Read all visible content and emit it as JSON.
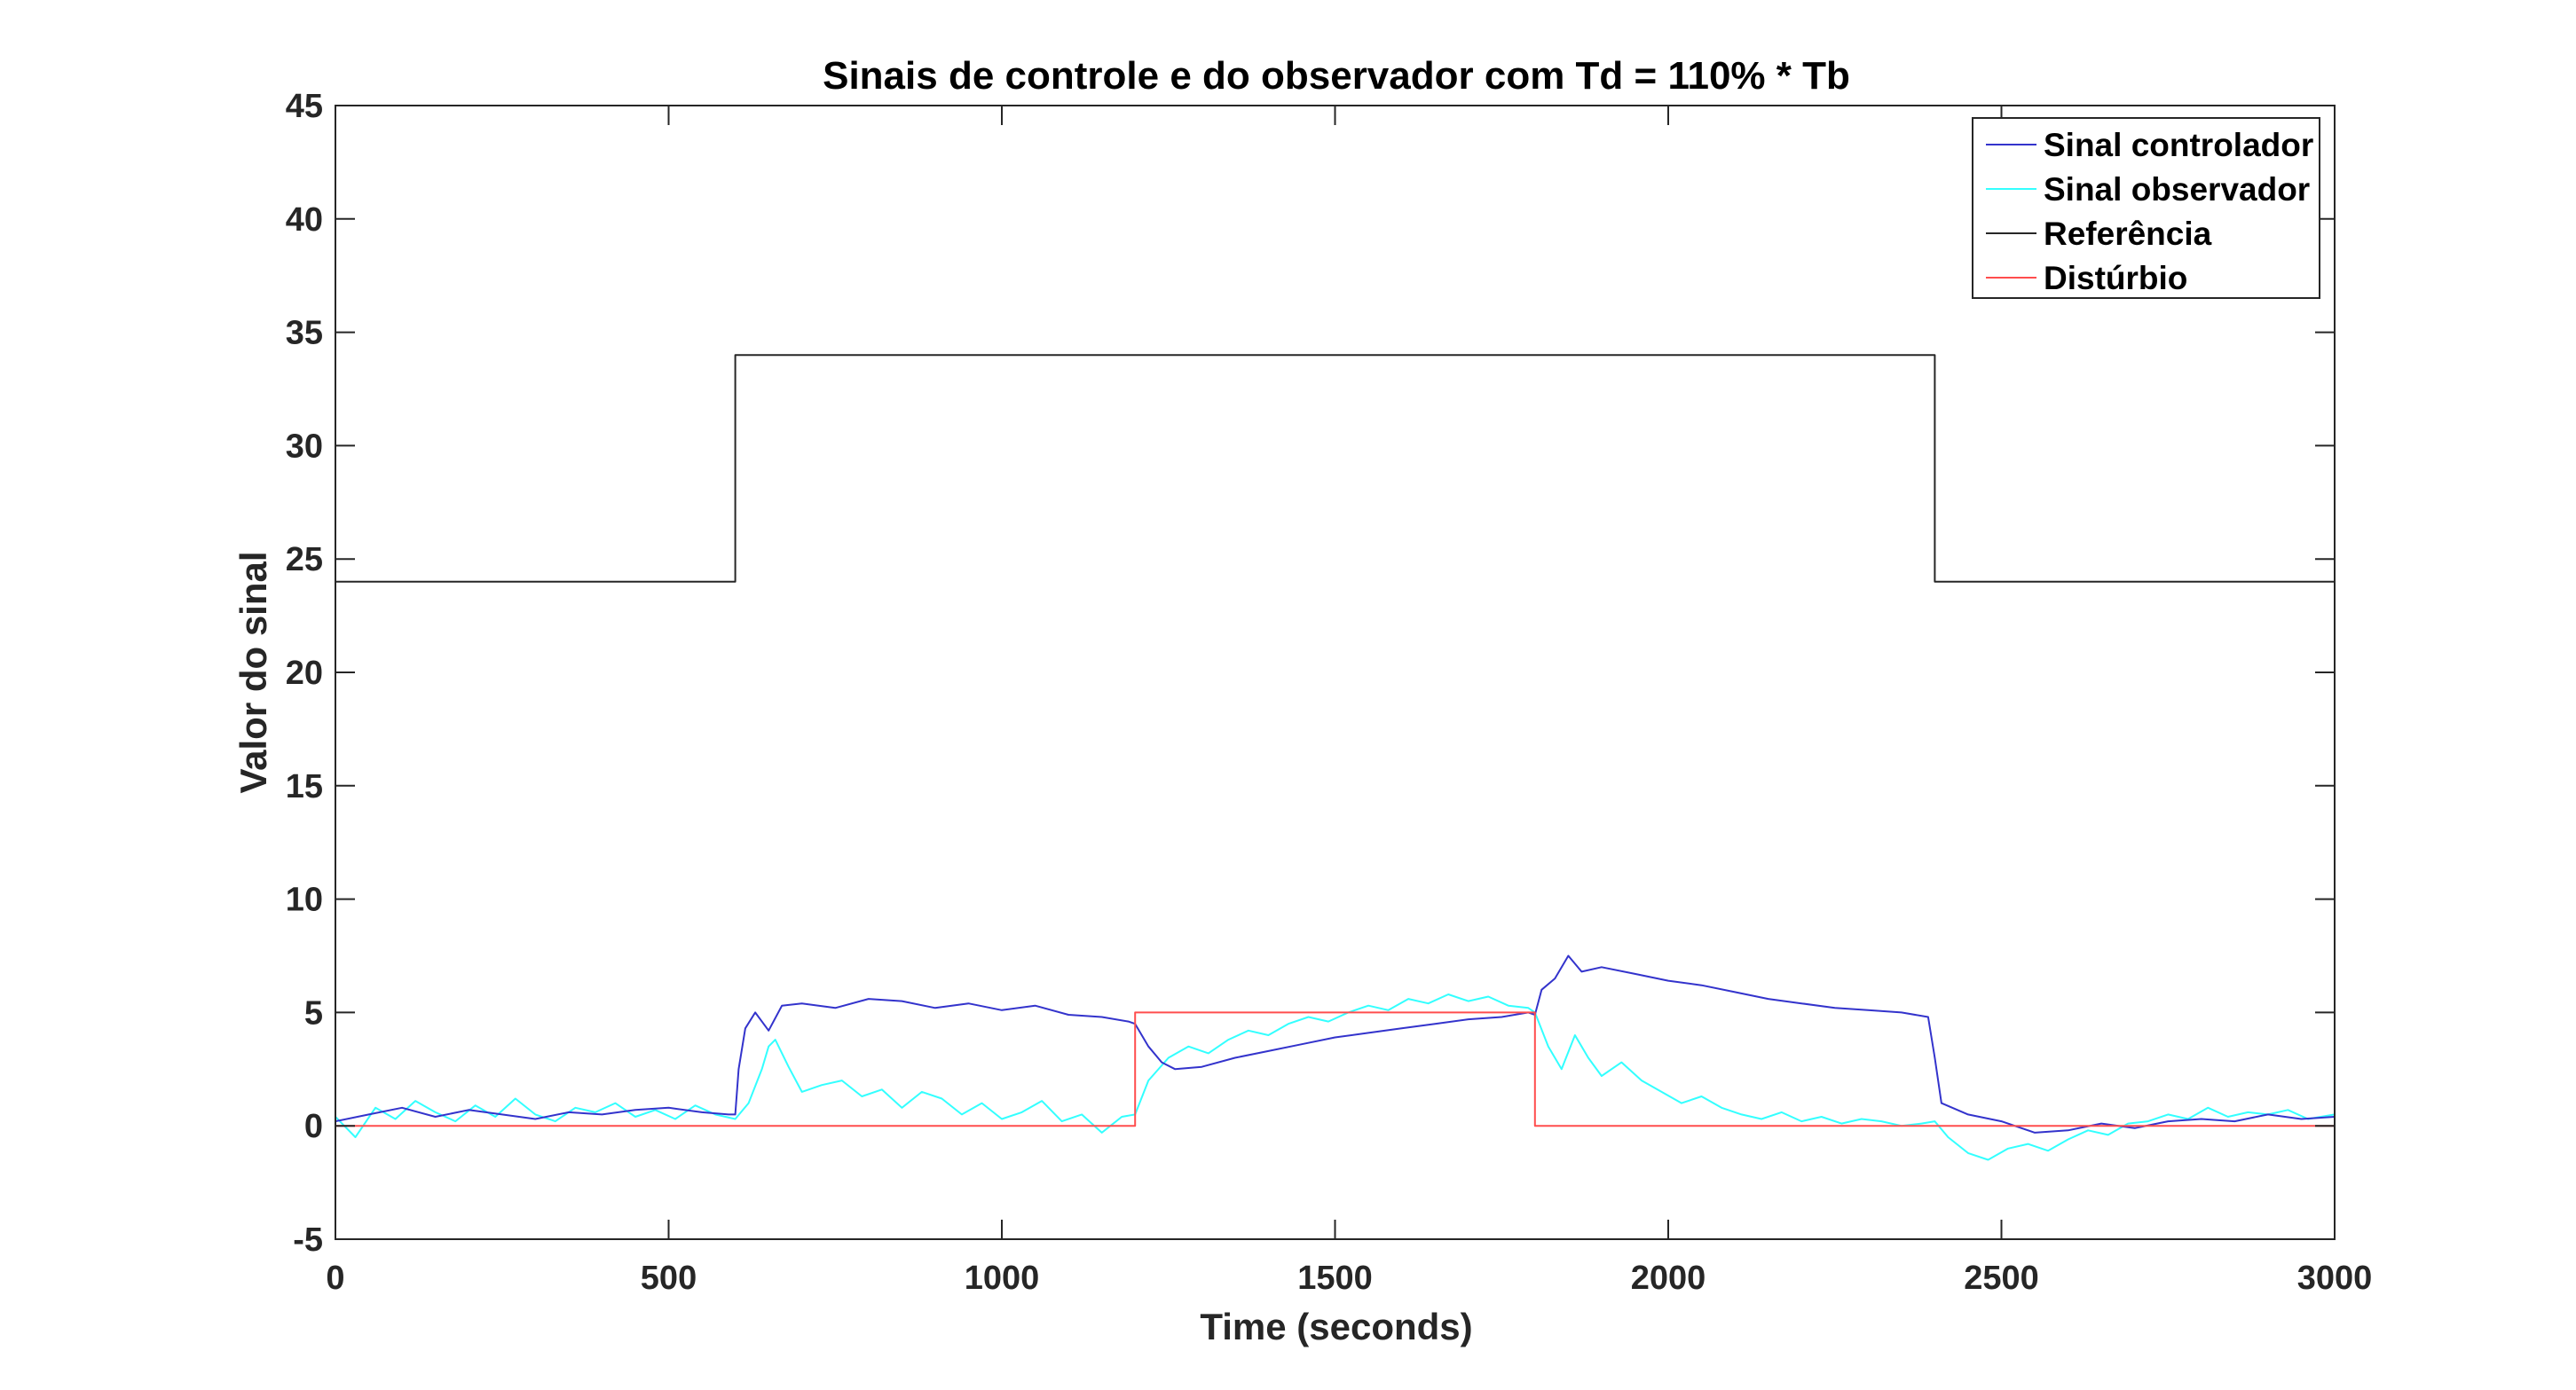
{
  "chart_data": {
    "type": "line",
    "title": "Sinais de controle e do observador com Td = 110% * Tb",
    "xlabel": "Time (seconds)",
    "ylabel": "Valor do sinal",
    "xlim": [
      0,
      3000
    ],
    "ylim": [
      -5,
      45
    ],
    "xticks": [
      0,
      500,
      1000,
      1500,
      2000,
      2500,
      3000
    ],
    "yticks": [
      -5,
      0,
      5,
      10,
      15,
      20,
      25,
      30,
      35,
      40,
      45
    ],
    "grid": false,
    "legend_position": "top-right",
    "series": [
      {
        "name": "Sinal controlador",
        "color": "#3333cc",
        "x": [
          0,
          50,
          100,
          150,
          200,
          250,
          300,
          350,
          400,
          450,
          500,
          550,
          590,
          600,
          605,
          615,
          630,
          650,
          670,
          700,
          750,
          800,
          850,
          900,
          950,
          1000,
          1050,
          1100,
          1150,
          1190,
          1200,
          1220,
          1240,
          1260,
          1300,
          1350,
          1400,
          1450,
          1500,
          1550,
          1600,
          1650,
          1700,
          1750,
          1790,
          1800,
          1810,
          1830,
          1850,
          1870,
          1900,
          1950,
          2000,
          2050,
          2100,
          2150,
          2200,
          2250,
          2300,
          2350,
          2390,
          2400,
          2410,
          2450,
          2500,
          2550,
          2600,
          2650,
          2700,
          2750,
          2800,
          2850,
          2900,
          2950,
          3000
        ],
        "values": [
          0.2,
          0.5,
          0.8,
          0.4,
          0.7,
          0.5,
          0.3,
          0.6,
          0.5,
          0.7,
          0.8,
          0.6,
          0.5,
          0.5,
          2.5,
          4.3,
          5.0,
          4.2,
          5.3,
          5.4,
          5.2,
          5.6,
          5.5,
          5.2,
          5.4,
          5.1,
          5.3,
          4.9,
          4.8,
          4.6,
          4.5,
          3.5,
          2.8,
          2.5,
          2.6,
          3.0,
          3.3,
          3.6,
          3.9,
          4.1,
          4.3,
          4.5,
          4.7,
          4.8,
          5.0,
          4.9,
          6.0,
          6.5,
          7.5,
          6.8,
          7.0,
          6.7,
          6.4,
          6.2,
          5.9,
          5.6,
          5.4,
          5.2,
          5.1,
          5.0,
          4.8,
          3.0,
          1.0,
          0.5,
          0.2,
          -0.3,
          -0.2,
          0.1,
          -0.1,
          0.2,
          0.3,
          0.2,
          0.5,
          0.3,
          0.4
        ]
      },
      {
        "name": "Sinal observador",
        "color": "#33ffff",
        "x": [
          0,
          30,
          60,
          90,
          120,
          150,
          180,
          210,
          240,
          270,
          300,
          330,
          360,
          390,
          420,
          450,
          480,
          510,
          540,
          570,
          600,
          620,
          640,
          650,
          660,
          680,
          700,
          730,
          760,
          790,
          820,
          850,
          880,
          910,
          940,
          970,
          1000,
          1030,
          1060,
          1090,
          1120,
          1150,
          1180,
          1200,
          1220,
          1250,
          1280,
          1310,
          1340,
          1370,
          1400,
          1430,
          1460,
          1490,
          1520,
          1550,
          1580,
          1610,
          1640,
          1670,
          1700,
          1730,
          1760,
          1790,
          1800,
          1820,
          1840,
          1860,
          1880,
          1900,
          1930,
          1960,
          1990,
          2020,
          2050,
          2080,
          2110,
          2140,
          2170,
          2200,
          2230,
          2260,
          2290,
          2320,
          2350,
          2380,
          2400,
          2420,
          2450,
          2480,
          2510,
          2540,
          2570,
          2600,
          2630,
          2660,
          2690,
          2720,
          2750,
          2780,
          2810,
          2840,
          2870,
          2900,
          2930,
          2960,
          3000
        ],
        "values": [
          0.4,
          -0.5,
          0.8,
          0.3,
          1.1,
          0.6,
          0.2,
          0.9,
          0.4,
          1.2,
          0.5,
          0.2,
          0.8,
          0.6,
          1.0,
          0.4,
          0.7,
          0.3,
          0.9,
          0.5,
          0.3,
          1.0,
          2.5,
          3.5,
          3.8,
          2.6,
          1.5,
          1.8,
          2.0,
          1.3,
          1.6,
          0.8,
          1.5,
          1.2,
          0.5,
          1.0,
          0.3,
          0.6,
          1.1,
          0.2,
          0.5,
          -0.3,
          0.4,
          0.5,
          2.0,
          3.0,
          3.5,
          3.2,
          3.8,
          4.2,
          4.0,
          4.5,
          4.8,
          4.6,
          5.0,
          5.3,
          5.1,
          5.6,
          5.4,
          5.8,
          5.5,
          5.7,
          5.3,
          5.2,
          5.0,
          3.5,
          2.5,
          4.0,
          3.0,
          2.2,
          2.8,
          2.0,
          1.5,
          1.0,
          1.3,
          0.8,
          0.5,
          0.3,
          0.6,
          0.2,
          0.4,
          0.1,
          0.3,
          0.2,
          0.0,
          0.1,
          0.2,
          -0.5,
          -1.2,
          -1.5,
          -1.0,
          -0.8,
          -1.1,
          -0.6,
          -0.2,
          -0.4,
          0.1,
          0.2,
          0.5,
          0.3,
          0.8,
          0.4,
          0.6,
          0.5,
          0.7,
          0.3,
          0.5
        ]
      },
      {
        "name": "Referência",
        "color": "#262626",
        "x": [
          0,
          600,
          600,
          1800,
          2400,
          2400,
          3000
        ],
        "values": [
          24,
          24,
          34,
          34,
          34,
          24,
          24
        ]
      },
      {
        "name": "Distúrbio",
        "color": "#ff4d4d",
        "x": [
          0,
          1200,
          1200,
          1800,
          1800,
          3000
        ],
        "values": [
          0,
          0,
          5,
          5,
          0,
          0
        ]
      }
    ]
  }
}
